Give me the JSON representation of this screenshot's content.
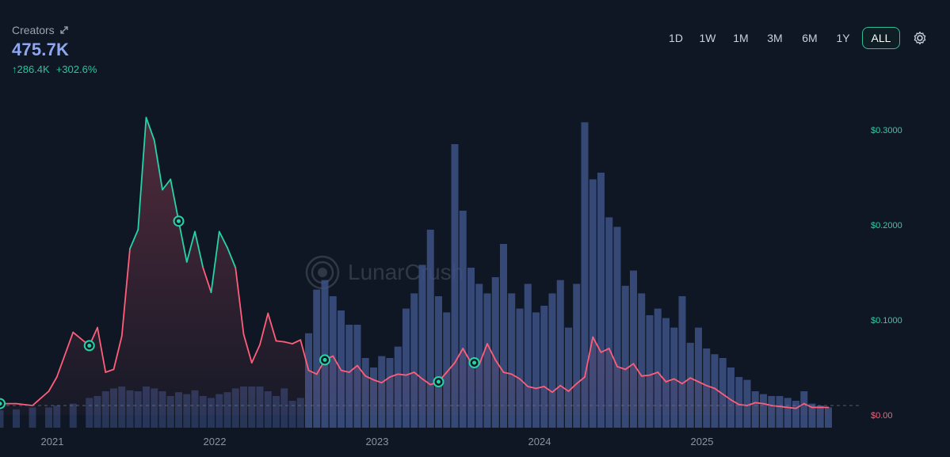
{
  "header": {
    "metric_label": "Creators",
    "metric_value": "475.7K",
    "change_abs": "↑286.4K",
    "change_pct": "+302.6%"
  },
  "ranges": {
    "options": [
      "1D",
      "1W",
      "1M",
      "3M",
      "6M",
      "1Y",
      "ALL"
    ],
    "selected": "ALL"
  },
  "watermark": "LunarCrush",
  "colors": {
    "background": "#0f1724",
    "bars": "#3d5184",
    "price_up": "#25d3a6",
    "price_down": "#ff5e7a",
    "axis_text": "#8b93a3",
    "accent": "#2fbf98"
  },
  "icons": [
    "expand-icon",
    "settings-gear-icon"
  ],
  "chart_data": {
    "type": "line",
    "x_label_ticks": [
      "2021",
      "2022",
      "2023",
      "2024",
      "2025"
    ],
    "y_right_ticks": [
      "$0.3000",
      "$0.2000",
      "$0.1000",
      "$0.00"
    ],
    "ylim": [
      0,
      0.33
    ],
    "series": [
      {
        "role": "price",
        "x": [
          0.0,
          0.1,
          0.2,
          0.3,
          0.35,
          0.45,
          0.55,
          0.6,
          0.65,
          0.7,
          0.75,
          0.8,
          0.85,
          0.9,
          0.95,
          1.0,
          1.05,
          1.1,
          1.15,
          1.2,
          1.25,
          1.3,
          1.35,
          1.4,
          1.45,
          1.5,
          1.55,
          1.6,
          1.65,
          1.7,
          1.75,
          1.8,
          1.85,
          1.9,
          1.95,
          2.0,
          2.05,
          2.1,
          2.15,
          2.2,
          2.25,
          2.3,
          2.35,
          2.4,
          2.45,
          2.5,
          2.55,
          2.6,
          2.65,
          2.7,
          2.75,
          2.8,
          2.85,
          2.9,
          2.95,
          3.0,
          3.05,
          3.1,
          3.15,
          3.2,
          3.25,
          3.3,
          3.35,
          3.4,
          3.45,
          3.5,
          3.55,
          3.6,
          3.65,
          3.7,
          3.75,
          3.8,
          3.85,
          3.9,
          3.95,
          4.0,
          4.05,
          4.1,
          4.15,
          4.2,
          4.25,
          4.3,
          4.35,
          4.4,
          4.45,
          4.5,
          4.55,
          4.6,
          4.65,
          4.7,
          4.75,
          4.8,
          4.85,
          4.9,
          4.95,
          5.0,
          5.05,
          5.1
        ],
        "values": [
          0.012,
          0.012,
          0.01,
          0.025,
          0.04,
          0.087,
          0.073,
          0.092,
          0.045,
          0.048,
          0.083,
          0.175,
          0.195,
          0.313,
          0.289,
          0.237,
          0.248,
          0.204,
          0.161,
          0.193,
          0.155,
          0.129,
          0.193,
          0.176,
          0.155,
          0.085,
          0.055,
          0.074,
          0.107,
          0.078,
          0.077,
          0.075,
          0.079,
          0.047,
          0.043,
          0.058,
          0.062,
          0.047,
          0.045,
          0.052,
          0.041,
          0.037,
          0.034,
          0.04,
          0.043,
          0.042,
          0.045,
          0.038,
          0.032,
          0.035,
          0.045,
          0.055,
          0.07,
          0.055,
          0.053,
          0.075,
          0.058,
          0.045,
          0.043,
          0.038,
          0.03,
          0.028,
          0.03,
          0.024,
          0.031,
          0.025,
          0.033,
          0.04,
          0.082,
          0.066,
          0.07,
          0.051,
          0.048,
          0.054,
          0.041,
          0.042,
          0.045,
          0.035,
          0.038,
          0.033,
          0.039,
          0.035,
          0.031,
          0.028,
          0.022,
          0.016,
          0.011,
          0.01,
          0.013,
          0.012,
          0.01,
          0.009,
          0.008,
          0.007,
          0.012,
          0.008,
          0.008,
          0.008
        ]
      },
      {
        "role": "creators",
        "x": [
          0.0,
          0.1,
          0.2,
          0.3,
          0.35,
          0.45,
          0.55,
          0.6,
          0.65,
          0.7,
          0.75,
          0.8,
          0.85,
          0.9,
          0.95,
          1.0,
          1.05,
          1.1,
          1.15,
          1.2,
          1.25,
          1.3,
          1.35,
          1.4,
          1.45,
          1.5,
          1.55,
          1.6,
          1.65,
          1.7,
          1.75,
          1.8,
          1.85,
          1.9,
          1.95,
          2.0,
          2.05,
          2.1,
          2.15,
          2.2,
          2.25,
          2.3,
          2.35,
          2.4,
          2.45,
          2.5,
          2.55,
          2.6,
          2.65,
          2.7,
          2.75,
          2.8,
          2.85,
          2.9,
          2.95,
          3.0,
          3.05,
          3.1,
          3.15,
          3.2,
          3.25,
          3.3,
          3.35,
          3.4,
          3.45,
          3.5,
          3.55,
          3.6,
          3.65,
          3.7,
          3.75,
          3.8,
          3.85,
          3.9,
          3.95,
          4.0,
          4.05,
          4.1,
          4.15,
          4.2,
          4.25,
          4.3,
          4.35,
          4.4,
          4.45,
          4.5,
          4.55,
          4.6,
          4.65,
          4.7,
          4.75,
          4.8,
          4.85,
          4.9,
          4.95,
          5.0,
          5.05,
          5.1
        ],
        "values": [
          0.005,
          0.006,
          0.008,
          0.008,
          0.01,
          0.012,
          0.018,
          0.02,
          0.025,
          0.028,
          0.03,
          0.026,
          0.025,
          0.03,
          0.028,
          0.025,
          0.02,
          0.024,
          0.022,
          0.026,
          0.02,
          0.018,
          0.022,
          0.024,
          0.028,
          0.03,
          0.03,
          0.03,
          0.025,
          0.02,
          0.028,
          0.015,
          0.018,
          0.086,
          0.132,
          0.142,
          0.125,
          0.11,
          0.095,
          0.095,
          0.06,
          0.05,
          0.062,
          0.06,
          0.072,
          0.112,
          0.128,
          0.158,
          0.195,
          0.125,
          0.108,
          0.285,
          0.215,
          0.155,
          0.138,
          0.128,
          0.145,
          0.18,
          0.128,
          0.112,
          0.138,
          0.108,
          0.115,
          0.128,
          0.142,
          0.092,
          0.138,
          0.308,
          0.248,
          0.255,
          0.208,
          0.198,
          0.136,
          0.152,
          0.128,
          0.105,
          0.112,
          0.102,
          0.092,
          0.125,
          0.076,
          0.092,
          0.07,
          0.064,
          0.06,
          0.05,
          0.04,
          0.037,
          0.025,
          0.022,
          0.02,
          0.02,
          0.018,
          0.015,
          0.025,
          0.012,
          0.01,
          0.008
        ]
      }
    ],
    "markers_x": [
      0.0,
      0.55,
      1.1,
      2.0,
      2.7,
      2.92
    ]
  }
}
